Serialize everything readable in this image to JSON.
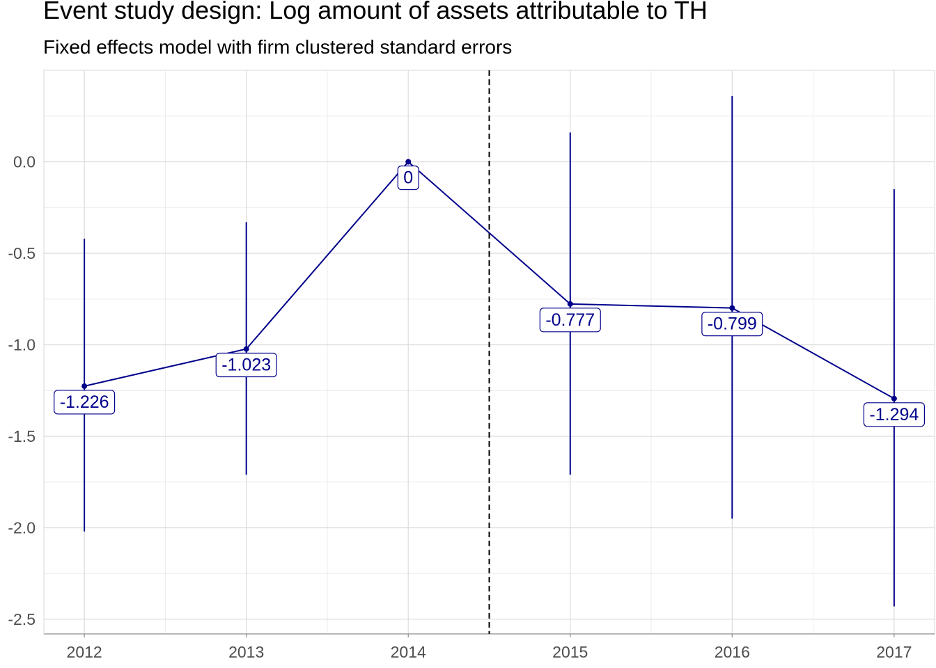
{
  "chart_data": {
    "type": "line",
    "title": "Event study design: Log amount of assets attributable to TH",
    "subtitle": "Fixed effects model with firm clustered standard errors",
    "xlabel": "",
    "ylabel": "",
    "x": [
      2012,
      2013,
      2014,
      2015,
      2016,
      2017
    ],
    "x_tick_labels": [
      "2012",
      "2013",
      "2014",
      "2015",
      "2016",
      "2017"
    ],
    "series": [
      {
        "values": [
          -1.226,
          -1.023,
          0,
          -0.777,
          -0.799,
          -1.294
        ],
        "ci_lower": [
          -2.02,
          -1.71,
          0,
          -1.71,
          -1.95,
          -2.43
        ],
        "ci_upper": [
          -0.42,
          -0.33,
          0,
          0.16,
          0.36,
          -0.15
        ],
        "point_labels": [
          "-1.226",
          "-1.023",
          "0",
          "-0.777",
          "-0.799",
          "-1.294"
        ],
        "color": "#00008b"
      }
    ],
    "y_tick_values": [
      0.0,
      -0.5,
      -1.0,
      -1.5,
      -2.0,
      -2.5
    ],
    "y_tick_labels": [
      "0.0",
      "-0.5",
      "-1.0",
      "-1.5",
      "-2.0",
      "-2.5"
    ],
    "ylim": [
      -2.58,
      0.5
    ],
    "xlim": [
      2011.75,
      2017.25
    ],
    "reference_line": {
      "x": 2014.5,
      "style": "dashed",
      "color": "#000000"
    },
    "grid": true,
    "legend": "none"
  }
}
